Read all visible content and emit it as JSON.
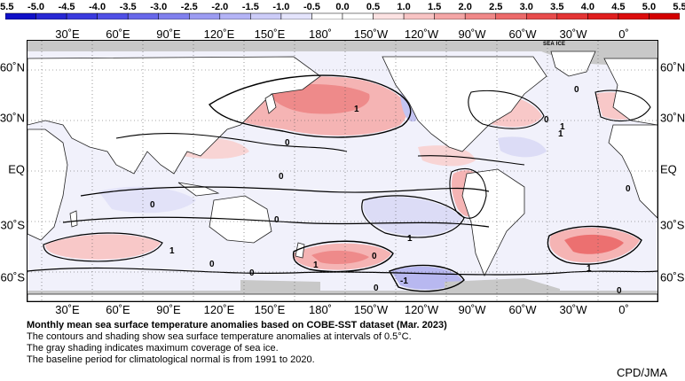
{
  "colorbar": {
    "ticks": [
      "-5.5",
      "-5.0",
      "-4.5",
      "-4.0",
      "-3.5",
      "-3.0",
      "-2.5",
      "-2.0",
      "-1.5",
      "-1.0",
      "-0.5",
      "0.0",
      "0.5",
      "1.0",
      "1.5",
      "2.0",
      "2.5",
      "3.0",
      "3.5",
      "4.0",
      "4.5",
      "5.0",
      "5.5"
    ],
    "colors": [
      "#1010c8",
      "#2828d4",
      "#3a3ade",
      "#5050e6",
      "#6868ea",
      "#8080ee",
      "#9c9cf2",
      "#b4b4f6",
      "#ccccf8",
      "#e4e4fc",
      "#ffffff",
      "#ffffff",
      "#fce2e2",
      "#f8c4c4",
      "#f4a6a6",
      "#f08888",
      "#ec6a6a",
      "#e84c4c",
      "#e43434",
      "#e01e1e",
      "#dc0c0c",
      "#d40000"
    ]
  },
  "longitudes": [
    "30˚E",
    "60˚E",
    "90˚E",
    "120˚E",
    "150˚E",
    "180˚",
    "150˚W",
    "120˚W",
    "90˚W",
    "60˚W",
    "30˚W",
    "0˚"
  ],
  "latitudes": [
    "60˚N",
    "30˚N",
    "EQ",
    "30˚S",
    "60˚S"
  ],
  "map": {
    "sea_ice_label": "SEA ICE",
    "contour_labels": [
      "1",
      "0",
      "0",
      "0",
      "1",
      "0",
      "0",
      "0",
      "1",
      "0",
      "0",
      "1",
      "0",
      "1",
      "1",
      "0",
      "0",
      "-1",
      "0",
      "1"
    ],
    "colors": {
      "land": "#ffffff",
      "sea_ice": "#c8c8c8",
      "ocean_neutral": "#f4f4ff"
    }
  },
  "caption": {
    "title": "Monthly mean sea surface temperature anomalies based on COBE-SST dataset (Mar. 2023)",
    "lines": [
      "The contours and shading show sea surface temperature anomalies at intervals of 0.5°C.",
      "The gray shading indicates maximum coverage of sea ice.",
      "The baseline period for climatological normal is from 1991 to 2020."
    ]
  },
  "credit": "CPD/JMA"
}
